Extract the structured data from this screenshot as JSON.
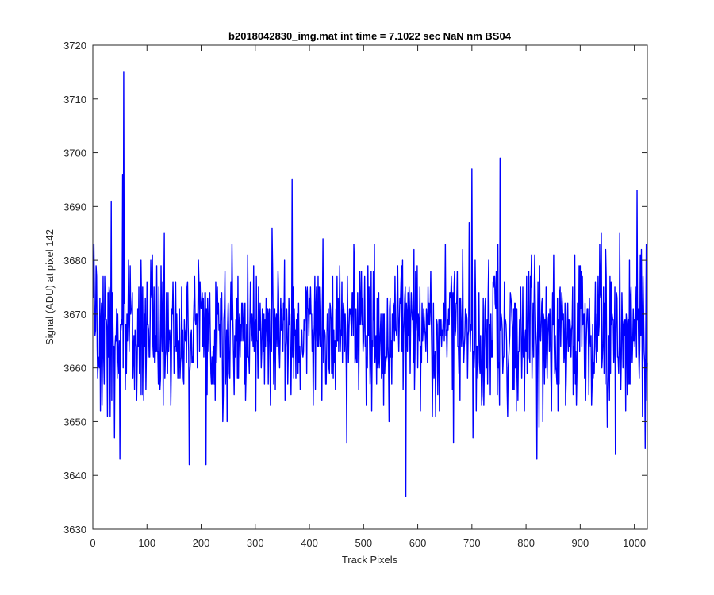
{
  "chart_data": {
    "type": "line",
    "title": "b2018042830_img.mat int time = 7.1022 sec  NaN nm BS04",
    "xlabel": "Track Pixels",
    "ylabel": "Signal (ADU) at pixel 142",
    "xlim": [
      0,
      1024
    ],
    "ylim": [
      3630,
      3720
    ],
    "x_ticks": [
      0,
      100,
      200,
      300,
      400,
      500,
      600,
      700,
      800,
      900,
      1000
    ],
    "y_ticks": [
      3630,
      3640,
      3650,
      3660,
      3670,
      3680,
      3690,
      3700,
      3710,
      3720
    ],
    "grid": false,
    "line_color": "#0000ff",
    "series": [
      {
        "x_start": 1,
        "x_step": 1,
        "points_count": 1024,
        "mean": 3667,
        "noise_std": 7.2,
        "seed": 142,
        "notable_points": [
          {
            "x": 57,
            "y": 3715
          },
          {
            "x": 55,
            "y": 3696
          },
          {
            "x": 34,
            "y": 3691
          },
          {
            "x": 50,
            "y": 3643
          },
          {
            "x": 178,
            "y": 3642
          },
          {
            "x": 209,
            "y": 3642
          },
          {
            "x": 368,
            "y": 3695
          },
          {
            "x": 578,
            "y": 3636
          },
          {
            "x": 752,
            "y": 3699
          },
          {
            "x": 700,
            "y": 3697
          },
          {
            "x": 820,
            "y": 3643
          },
          {
            "x": 965,
            "y": 3644
          },
          {
            "x": 1005,
            "y": 3693
          },
          {
            "x": 1020,
            "y": 3645
          }
        ]
      }
    ]
  }
}
